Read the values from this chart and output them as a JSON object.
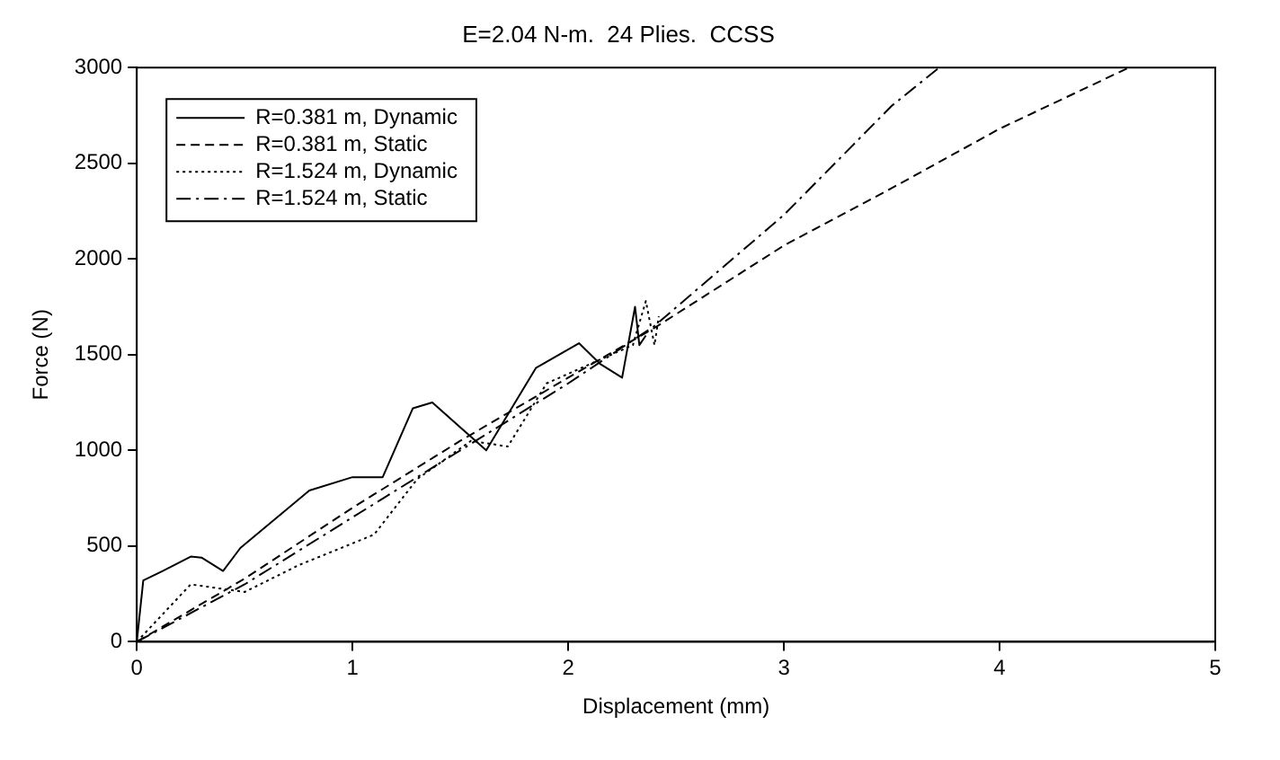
{
  "chart_data": {
    "type": "line",
    "title": "E=2.04 N-m.  24 Plies.  CCSS",
    "xlabel": "Displacement (mm)",
    "ylabel": "Force (N)",
    "xlim": [
      0,
      5
    ],
    "xticks": [
      0,
      1,
      2,
      3,
      4,
      5
    ],
    "ylim": [
      0,
      3000
    ],
    "yticks": [
      0,
      500,
      1000,
      1500,
      2000,
      2500,
      3000
    ],
    "grid": false,
    "legend": "top left",
    "marker": "none",
    "series": [
      {
        "name": "R=0.381 m, Dynamic",
        "color": "#000000",
        "line_style": "solid",
        "x": [
          0,
          0.03,
          0.12,
          0.25,
          0.3,
          0.4,
          0.48,
          0.8,
          1.0,
          1.14,
          1.28,
          1.37,
          1.62,
          1.85,
          2.05,
          2.15,
          2.25,
          2.31,
          2.33,
          2.36
        ],
        "values": [
          0,
          320,
          370,
          445,
          440,
          370,
          490,
          790,
          860,
          860,
          1220,
          1250,
          1000,
          1430,
          1560,
          1450,
          1380,
          1750,
          1550,
          1600
        ]
      },
      {
        "name": "R=0.381 m, Static",
        "color": "#000000",
        "line_style": "dashed",
        "x": [
          0,
          0.5,
          1,
          1.5,
          2,
          2.4,
          3,
          3.5,
          4,
          4.6
        ],
        "values": [
          0,
          330,
          700,
          1050,
          1380,
          1640,
          2070,
          2370,
          2680,
          3000
        ]
      },
      {
        "name": "R=1.524 m, Dynamic",
        "color": "#000000",
        "line_style": "dotted",
        "x": [
          0,
          0.25,
          0.5,
          0.75,
          1.1,
          1.3,
          1.55,
          1.72,
          1.9,
          2.1,
          2.3,
          2.36,
          2.4,
          2.42
        ],
        "values": [
          0,
          300,
          260,
          400,
          560,
          850,
          1050,
          1020,
          1350,
          1450,
          1550,
          1780,
          1550,
          1700
        ]
      },
      {
        "name": "R=1.524 m, Static",
        "color": "#000000",
        "line_style": "dashdot",
        "x": [
          0,
          0.5,
          1,
          1.5,
          2,
          2.4,
          3,
          3.5,
          3.72
        ],
        "values": [
          0,
          300,
          650,
          1000,
          1350,
          1650,
          2230,
          2800,
          3000
        ]
      }
    ]
  }
}
